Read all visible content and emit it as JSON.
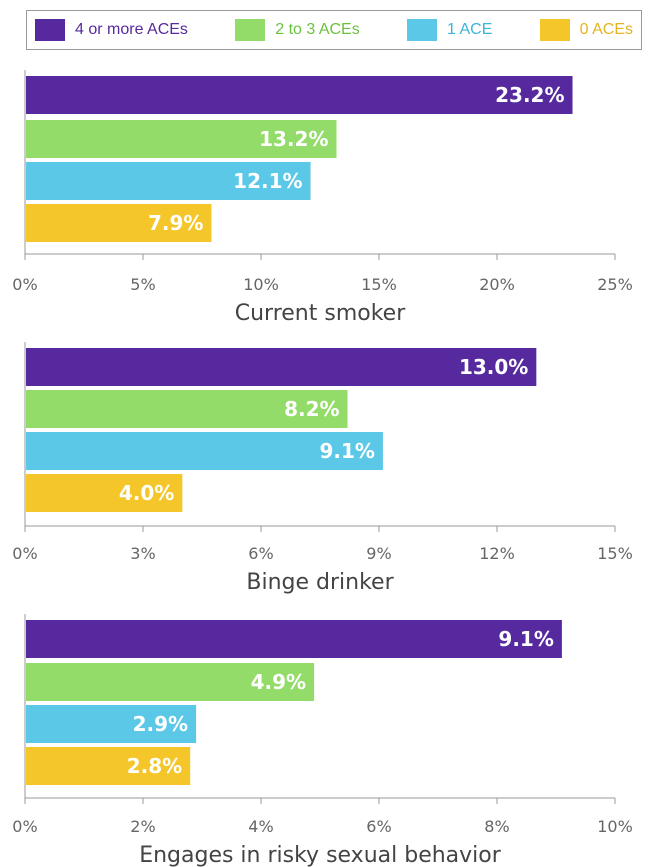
{
  "legend": [
    {
      "label": "4 or more ACEs",
      "color": "#56299e",
      "text_color": "#56299e"
    },
    {
      "label": "2 to 3 ACEs",
      "color": "#93dc6a",
      "text_color": "#6cc23e"
    },
    {
      "label": "1 ACE",
      "color": "#5cc8e8",
      "text_color": "#3cb4dc"
    },
    {
      "label": "0 ACEs",
      "color": "#f5c62a",
      "text_color": "#e6b422"
    }
  ],
  "chart_data": [
    {
      "type": "bar",
      "orientation": "horizontal",
      "title": "",
      "xlabel": "Current smoker",
      "ylabel": "",
      "categories": [
        "4 or more ACEs",
        "2 to 3 ACEs",
        "1 ACE",
        "0 ACEs"
      ],
      "values": [
        23.2,
        13.2,
        12.1,
        7.9
      ],
      "value_labels": [
        "23.2%",
        "13.2%",
        "12.1%",
        "7.9%"
      ],
      "xlim": [
        0,
        25
      ],
      "ticks": [
        0,
        5,
        10,
        15,
        20,
        25
      ],
      "tick_labels": [
        "0%",
        "5%",
        "10%",
        "15%",
        "20%",
        "25%"
      ]
    },
    {
      "type": "bar",
      "orientation": "horizontal",
      "title": "",
      "xlabel": "Binge drinker",
      "ylabel": "",
      "categories": [
        "4 or more ACEs",
        "2 to 3 ACEs",
        "1 ACE",
        "0 ACEs"
      ],
      "values": [
        13.0,
        8.2,
        9.1,
        4.0
      ],
      "value_labels": [
        "13.0%",
        "8.2%",
        "9.1%",
        "4.0%"
      ],
      "xlim": [
        0,
        15
      ],
      "ticks": [
        0,
        3,
        6,
        9,
        12,
        15
      ],
      "tick_labels": [
        "0%",
        "3%",
        "6%",
        "9%",
        "12%",
        "15%"
      ]
    },
    {
      "type": "bar",
      "orientation": "horizontal",
      "title": "",
      "xlabel": "Engages in risky sexual behavior",
      "ylabel": "",
      "categories": [
        "4 or more ACEs",
        "2 to 3 ACEs",
        "1 ACE",
        "0 ACEs"
      ],
      "values": [
        9.1,
        4.9,
        2.9,
        2.8
      ],
      "value_labels": [
        "9.1%",
        "4.9%",
        "2.9%",
        "2.8%"
      ],
      "xlim": [
        0,
        10
      ],
      "ticks": [
        0,
        2,
        4,
        6,
        8,
        10
      ],
      "tick_labels": [
        "0%",
        "2%",
        "4%",
        "6%",
        "8%",
        "10%"
      ]
    }
  ]
}
